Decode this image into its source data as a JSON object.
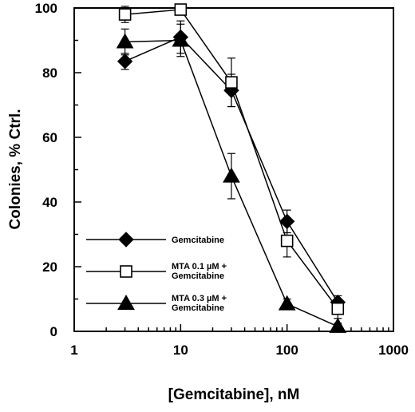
{
  "chart_data": {
    "type": "line",
    "title": "",
    "xlabel": "[Gemcitabine], nM",
    "ylabel": "Colonies, % Ctrl.",
    "xscale": "log",
    "xlim": [
      1,
      1000
    ],
    "ylim": [
      0,
      100
    ],
    "x_ticks": [
      "1",
      "10",
      "100",
      "1000"
    ],
    "y_ticks": [
      "0",
      "20",
      "40",
      "60",
      "80",
      "100"
    ],
    "grid": false,
    "legend_position": "bottom-left",
    "x": [
      3,
      10,
      30,
      100,
      300
    ],
    "series": [
      {
        "name_lines": [
          "Gemcitabine"
        ],
        "marker": "diamond-filled",
        "values": [
          83.5,
          91,
          74.5,
          34,
          9
        ],
        "errors": [
          2.5,
          5,
          5,
          3.5,
          2
        ]
      },
      {
        "name_lines": [
          "MTA 0.1 µM +",
          "Gemcitabine"
        ],
        "marker": "square-open",
        "values": [
          98,
          99.5,
          77,
          28,
          7
        ],
        "errors": [
          2.5,
          1,
          7.5,
          5,
          3
        ]
      },
      {
        "name_lines": [
          "MTA 0.3 µM +",
          "Gemcitabine"
        ],
        "marker": "triangle-filled",
        "values": [
          89.5,
          90,
          48,
          8.5,
          1.5
        ],
        "errors": [
          4,
          5,
          7,
          1.5,
          1
        ]
      }
    ]
  }
}
